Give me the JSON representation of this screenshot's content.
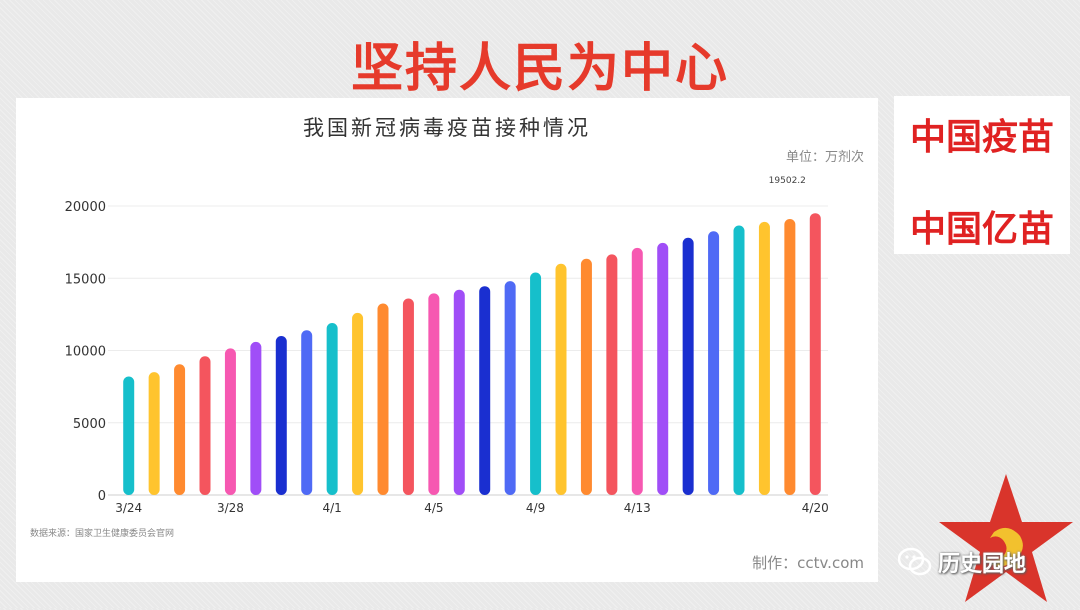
{
  "slide": {
    "title": "坚持人民为中心",
    "side_lines": [
      "中国疫苗",
      "中国亿苗"
    ],
    "watermark": "历史园地"
  },
  "chart_data": {
    "type": "bar",
    "title": "我国新冠病毒疫苗接种情况",
    "unit": "单位：万剂次",
    "source": "数据来源：国家卫生健康委员会官网",
    "credit": "制作：cctv.com",
    "xlabel": "",
    "ylabel": "",
    "ylim": [
      0,
      20000
    ],
    "yticks": [
      0,
      5000,
      10000,
      15000,
      20000
    ],
    "grid": true,
    "legend": "none",
    "categories": [
      "3/24",
      "3/25",
      "3/26",
      "3/27",
      "3/28",
      "3/29",
      "3/30",
      "3/31",
      "4/1",
      "4/2",
      "4/3",
      "4/4",
      "4/5",
      "4/6",
      "4/7",
      "4/8",
      "4/9",
      "4/10",
      "4/11",
      "4/12",
      "4/13",
      "4/14",
      "4/15",
      "4/16",
      "4/17",
      "4/18",
      "4/19",
      "4/20"
    ],
    "xtick_labels": [
      "3/24",
      "3/28",
      "4/1",
      "4/5",
      "4/9",
      "4/13",
      "4/20"
    ],
    "values": [
      8200,
      8500,
      9050,
      9600,
      10150,
      10600,
      11000,
      11400,
      11900,
      12600,
      13250,
      13600,
      13950,
      14200,
      14450,
      14800,
      15400,
      16000,
      16350,
      16650,
      17100,
      17450,
      17800,
      18250,
      18650,
      18900,
      19100,
      19502.2
    ],
    "annotations": [
      {
        "category": "4/20",
        "text": "19502.2"
      }
    ],
    "colors": [
      "#16bfcb",
      "#ffc42e",
      "#ff8a2f",
      "#f4555e",
      "#f658b1",
      "#a04ef7",
      "#1a2fd0",
      "#4f6af5"
    ]
  }
}
